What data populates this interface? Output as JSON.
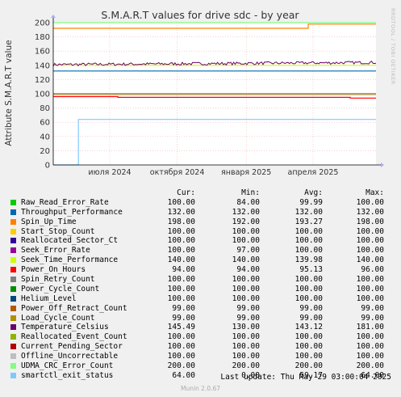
{
  "title": "S.M.A.R.T values for drive sdc - by year",
  "watermark": "RRDTOOL / TOBI OETIKER",
  "footer": {
    "last_update": "Last update: Thu May 29 03:00:04 2025",
    "munin": "Munin 2.0.67"
  },
  "legend_headers": {
    "cur": "Cur:",
    "min": "Min:",
    "avg": "Avg:",
    "max": "Max:"
  },
  "chart_data": {
    "type": "line",
    "title": "S.M.A.R.T values for drive sdc - by year",
    "ylabel": "Attribute S.M.A.R.T value",
    "ylim": [
      0,
      200
    ],
    "yticks": [
      0,
      20,
      40,
      60,
      80,
      100,
      120,
      140,
      160,
      180,
      200
    ],
    "xticks": [
      {
        "label": "июля 2024",
        "pos": 0.175
      },
      {
        "label": "октября 2024",
        "pos": 0.384
      },
      {
        "label": "января 2025",
        "pos": 0.598
      },
      {
        "label": "апреля 2025",
        "pos": 0.805
      }
    ],
    "grid": true,
    "series": [
      {
        "name": "Raw_Read_Error_Rate",
        "color": "#00cc00",
        "cur": "100.00",
        "min": "84.00",
        "avg": "99.99",
        "max": "100.00",
        "shape": "flat",
        "values": [
          100
        ]
      },
      {
        "name": "Throughput_Performance",
        "color": "#0066b3",
        "cur": "132.00",
        "min": "132.00",
        "avg": "132.00",
        "max": "132.00",
        "shape": "flat",
        "values": [
          132
        ]
      },
      {
        "name": "Spin_Up_Time",
        "color": "#ff8000",
        "cur": "198.00",
        "min": "192.00",
        "avg": "193.27",
        "max": "198.00",
        "shape": "step",
        "values": [
          192,
          198
        ],
        "step_at": 0.79
      },
      {
        "name": "Start_Stop_Count",
        "color": "#ffcc00",
        "cur": "100.00",
        "min": "100.00",
        "avg": "100.00",
        "max": "100.00",
        "shape": "flat",
        "values": [
          100
        ]
      },
      {
        "name": "Reallocated_Sector_Ct",
        "color": "#330099",
        "cur": "100.00",
        "min": "100.00",
        "avg": "100.00",
        "max": "100.00",
        "shape": "flat",
        "values": [
          100
        ]
      },
      {
        "name": "Seek_Error_Rate",
        "color": "#990099",
        "cur": "100.00",
        "min": "97.00",
        "avg": "100.00",
        "max": "100.00",
        "shape": "flat",
        "values": [
          100
        ]
      },
      {
        "name": "Seek_Time_Performance",
        "color": "#ccff00",
        "cur": "140.00",
        "min": "140.00",
        "avg": "139.98",
        "max": "140.00",
        "shape": "flat",
        "values": [
          140
        ]
      },
      {
        "name": "Power_On_Hours",
        "color": "#ff0000",
        "cur": "94.00",
        "min": "94.00",
        "avg": "95.13",
        "max": "96.00",
        "shape": "steps",
        "values": [
          96,
          95,
          94
        ],
        "step_at": [
          0.2,
          0.92
        ]
      },
      {
        "name": "Spin_Retry_Count",
        "color": "#808080",
        "cur": "100.00",
        "min": "100.00",
        "avg": "100.00",
        "max": "100.00",
        "shape": "flat",
        "values": [
          100
        ]
      },
      {
        "name": "Power_Cycle_Count",
        "color": "#008f00",
        "cur": "100.00",
        "min": "100.00",
        "avg": "100.00",
        "max": "100.00",
        "shape": "flat",
        "values": [
          100
        ]
      },
      {
        "name": "Helium_Level",
        "color": "#00487d",
        "cur": "100.00",
        "min": "100.00",
        "avg": "100.00",
        "max": "100.00",
        "shape": "flat",
        "values": [
          100
        ]
      },
      {
        "name": "Power_Off_Retract_Count",
        "color": "#b35a00",
        "cur": "99.00",
        "min": "99.00",
        "avg": "99.00",
        "max": "99.00",
        "shape": "flat",
        "values": [
          99
        ]
      },
      {
        "name": "Load_Cycle_Count",
        "color": "#b38f00",
        "cur": "99.00",
        "min": "99.00",
        "avg": "99.00",
        "max": "99.00",
        "shape": "flat",
        "values": [
          99
        ]
      },
      {
        "name": "Temperature_Celsius",
        "color": "#6b006b",
        "cur": "145.49",
        "min": "130.00",
        "avg": "143.12",
        "max": "181.00",
        "shape": "noisy",
        "values": [
          141,
          144
        ]
      },
      {
        "name": "Reallocated_Event_Count",
        "color": "#8fb300",
        "cur": "100.00",
        "min": "100.00",
        "avg": "100.00",
        "max": "100.00",
        "shape": "flat",
        "values": [
          100
        ]
      },
      {
        "name": "Current_Pending_Sector",
        "color": "#b30000",
        "cur": "100.00",
        "min": "100.00",
        "avg": "100.00",
        "max": "100.00",
        "shape": "flat",
        "values": [
          100
        ]
      },
      {
        "name": "Offline_Uncorrectable",
        "color": "#bebebe",
        "cur": "100.00",
        "min": "100.00",
        "avg": "100.00",
        "max": "100.00",
        "shape": "flat",
        "values": [
          100
        ]
      },
      {
        "name": "UDMA_CRC_Error_Count",
        "color": "#80ff80",
        "cur": "200.00",
        "min": "200.00",
        "avg": "200.00",
        "max": "200.00",
        "shape": "flat",
        "values": [
          200
        ]
      },
      {
        "name": "smartctl_exit_status",
        "color": "#80c9ff",
        "cur": "64.00",
        "min": "0.00",
        "avg": "59.17",
        "max": "64.00",
        "shape": "step",
        "values": [
          0,
          64
        ],
        "step_at": 0.078
      }
    ]
  }
}
